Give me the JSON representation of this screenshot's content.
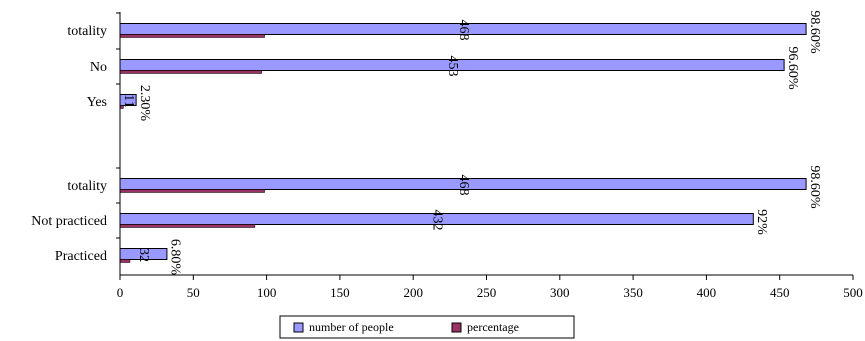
{
  "chart_data": {
    "type": "bar",
    "orientation": "horizontal",
    "xlim": [
      0,
      500
    ],
    "xticks": [
      0,
      50,
      100,
      150,
      200,
      250,
      300,
      350,
      400,
      450,
      500
    ],
    "legend_position": "bottom",
    "grid": false,
    "groups": [
      {
        "categories": [
          "totality",
          "No",
          "Yes"
        ],
        "series": [
          {
            "name": "number of people",
            "values": [
              468,
              453,
              11
            ],
            "labels": [
              "468",
              "453",
              "11"
            ]
          },
          {
            "name": "percentage",
            "values": [
              98.6,
              96.6,
              2.3
            ],
            "labels": [
              "98.60%",
              "96.60%",
              "2.30%"
            ]
          }
        ]
      },
      {
        "categories": [
          "totality",
          "Not practiced",
          "Practiced"
        ],
        "series": [
          {
            "name": "number of people",
            "values": [
              468,
              432,
              32
            ],
            "labels": [
              "468",
              "432",
              "32"
            ]
          },
          {
            "name": "percentage",
            "values": [
              98.6,
              92,
              6.8
            ],
            "labels": [
              "98.60%",
              "92%",
              "6.80%"
            ]
          }
        ]
      }
    ],
    "legend": [
      "number of people",
      "percentage"
    ],
    "colors": {
      "number of people": "#9999ff",
      "percentage": "#993366"
    }
  }
}
